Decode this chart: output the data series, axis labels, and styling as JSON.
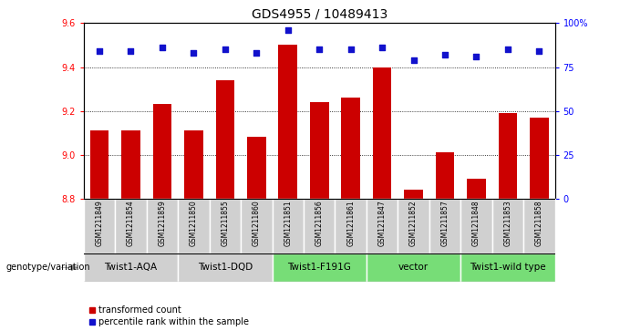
{
  "title": "GDS4955 / 10489413",
  "samples": [
    "GSM1211849",
    "GSM1211854",
    "GSM1211859",
    "GSM1211850",
    "GSM1211855",
    "GSM1211860",
    "GSM1211851",
    "GSM1211856",
    "GSM1211861",
    "GSM1211847",
    "GSM1211852",
    "GSM1211857",
    "GSM1211848",
    "GSM1211853",
    "GSM1211858"
  ],
  "bar_values": [
    9.11,
    9.11,
    9.23,
    9.11,
    9.34,
    9.08,
    9.5,
    9.24,
    9.26,
    9.4,
    8.84,
    9.01,
    8.89,
    9.19,
    9.17
  ],
  "percentile_values": [
    84,
    84,
    86,
    83,
    85,
    83,
    96,
    85,
    85,
    86,
    79,
    82,
    81,
    85,
    84
  ],
  "ylim_left": [
    8.8,
    9.6
  ],
  "ylim_right": [
    0,
    100
  ],
  "yticks_left": [
    8.8,
    9.0,
    9.2,
    9.4,
    9.6
  ],
  "yticks_right": [
    0,
    25,
    50,
    75,
    100
  ],
  "bar_color": "#cc0000",
  "dot_color": "#1111cc",
  "groups": [
    {
      "label": "Twist1-AQA",
      "start": 0,
      "end": 2,
      "color": "#d0d0d0"
    },
    {
      "label": "Twist1-DQD",
      "start": 3,
      "end": 5,
      "color": "#d0d0d0"
    },
    {
      "label": "Twist1-F191G",
      "start": 6,
      "end": 8,
      "color": "#77dd77"
    },
    {
      "label": "vector",
      "start": 9,
      "end": 11,
      "color": "#77dd77"
    },
    {
      "label": "Twist1-wild type",
      "start": 12,
      "end": 14,
      "color": "#77dd77"
    }
  ],
  "legend_red_label": "transformed count",
  "legend_blue_label": "percentile rank within the sample",
  "genotype_label": "genotype/variation",
  "background_color": "#ffffff",
  "title_fontsize": 10,
  "tick_fontsize": 7,
  "sample_fontsize": 5.5,
  "group_fontsize": 7.5,
  "legend_fontsize": 7,
  "sample_box_color": "#d0d0d0",
  "sample_box_edge": "#aaaaaa"
}
